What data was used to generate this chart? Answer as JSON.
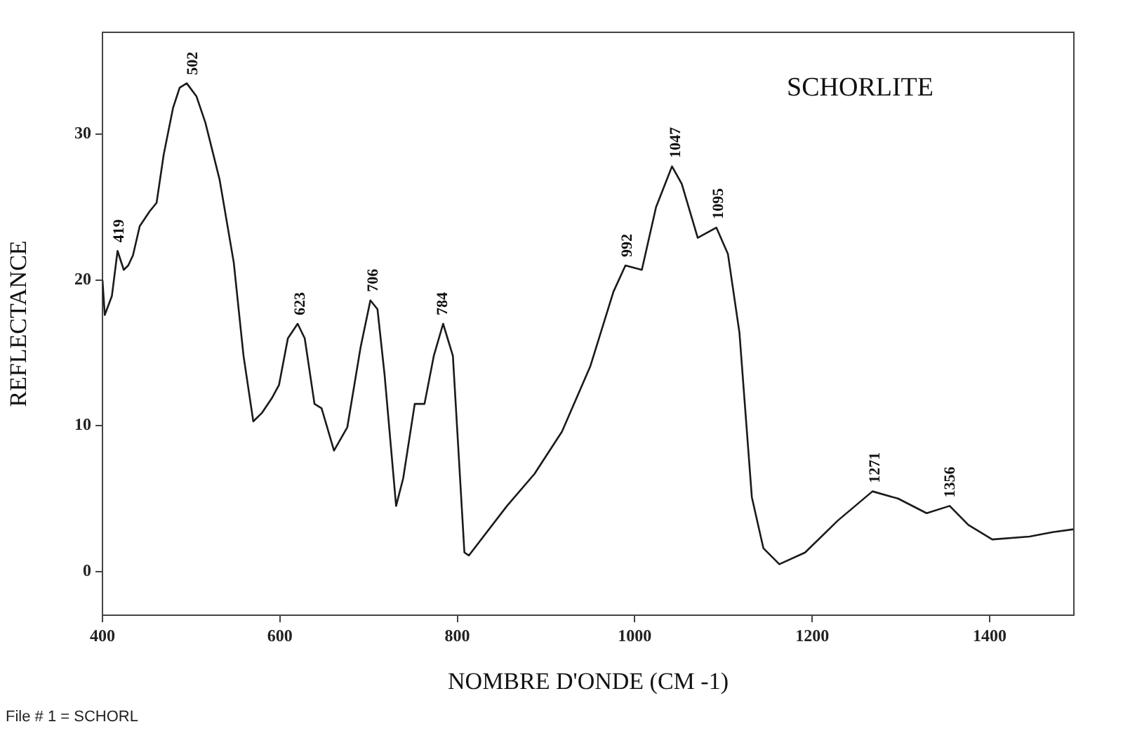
{
  "chart_data": {
    "type": "line",
    "title": "SCHORLITE",
    "xlabel": "NOMBRE D'ONDE (CM -1)",
    "ylabel": "REFLECTANCE",
    "xlim": [
      400,
      1495
    ],
    "ylim": [
      -3,
      37
    ],
    "xticks": [
      400,
      600,
      800,
      1000,
      1200,
      1400
    ],
    "yticks": [
      0,
      10,
      20,
      30
    ],
    "grid": false,
    "legend": false,
    "marker": "none",
    "line_style": "solid",
    "series": [
      {
        "color": "#1a1a1a",
        "x": [
          400,
          402.6,
          410.6,
          417,
          424,
          429,
          434.4,
          442,
          453,
          461,
          469,
          479.5,
          487,
          495,
          506,
          516,
          532,
          548,
          559,
          570,
          580,
          591,
          599,
          609,
          620,
          628,
          639,
          647,
          661,
          676,
          691,
          702,
          710,
          718,
          731,
          739,
          752,
          763,
          773.5,
          784,
          795,
          808,
          813,
          856,
          887,
          918,
          950,
          976,
          989.5,
          1008,
          1024,
          1042,
          1053,
          1071,
          1092,
          1105,
          1118,
          1132,
          1145,
          1163,
          1192,
          1229,
          1268,
          1297,
          1329,
          1355,
          1376,
          1403,
          1445,
          1471,
          1495
        ],
        "values": [
          20,
          17.6,
          18.9,
          22,
          20.7,
          21,
          21.7,
          23.7,
          24.7,
          25.3,
          28.6,
          31.8,
          33.2,
          33.5,
          32.6,
          30.8,
          26.9,
          21.2,
          14.8,
          10.3,
          10.9,
          11.9,
          12.8,
          16,
          17,
          16,
          11.5,
          11.2,
          8.3,
          9.9,
          15.4,
          18.6,
          18,
          13.5,
          4.5,
          6.4,
          11.5,
          11.5,
          14.8,
          17,
          14.8,
          1.3,
          1.1,
          4.5,
          6.7,
          9.6,
          14.1,
          19.2,
          21,
          20.7,
          25,
          27.8,
          26.6,
          22.9,
          23.6,
          21.8,
          16.4,
          5.1,
          1.6,
          0.5,
          1.3,
          3.5,
          5.5,
          5,
          4,
          4.5,
          3.2,
          2.2,
          2.4,
          2.7,
          2.9
        ]
      }
    ],
    "annotations": [
      {
        "text": "419",
        "x": 419,
        "y": 22
      },
      {
        "text": "502",
        "x": 502,
        "y": 33.5
      },
      {
        "text": "623",
        "x": 623,
        "y": 17
      },
      {
        "text": "706",
        "x": 706,
        "y": 18.6
      },
      {
        "text": "784",
        "x": 784,
        "y": 17
      },
      {
        "text": "992",
        "x": 992,
        "y": 21
      },
      {
        "text": "1047",
        "x": 1047,
        "y": 27.8
      },
      {
        "text": "1095",
        "x": 1095,
        "y": 23.6
      },
      {
        "text": "1271",
        "x": 1271,
        "y": 5.5
      },
      {
        "text": "1356",
        "x": 1356,
        "y": 4.5
      },
      "File # 1 = SCHORL"
    ]
  }
}
